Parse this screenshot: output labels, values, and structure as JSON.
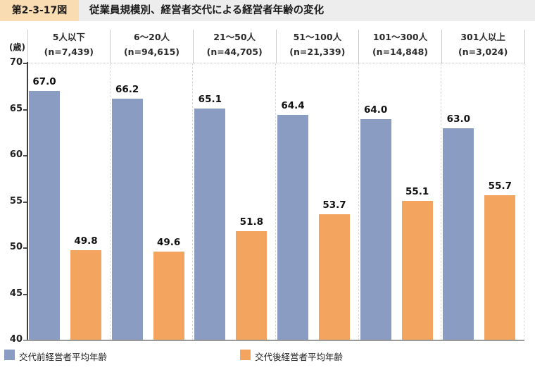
{
  "figure_header": {
    "label": "第2-3-17図",
    "title": "従業員規模別、経営者交代による経営者年齢の変化"
  },
  "chart_data": {
    "type": "bar",
    "title": "従業員規模別、経営者交代による経営者年齢の変化",
    "unit_label": "(歳)",
    "ylim": [
      40,
      70
    ],
    "yticks": [
      40,
      45,
      50,
      55,
      60,
      65,
      70
    ],
    "grid": false,
    "legend_position": "bottom",
    "categories": [
      {
        "label": "5人以下",
        "n": "(n=7,439)"
      },
      {
        "label": "6〜20人",
        "n": "(n=94,615)"
      },
      {
        "label": "21〜50人",
        "n": "(n=44,705)"
      },
      {
        "label": "51〜100人",
        "n": "(n=21,339)"
      },
      {
        "label": "101〜300人",
        "n": "(n=14,848)"
      },
      {
        "label": "301人以上",
        "n": "(n=3,024)"
      }
    ],
    "series": [
      {
        "name": "交代前経営者平均年齢",
        "color": "#8b9cc3",
        "values": [
          67.0,
          66.2,
          65.1,
          64.4,
          64.0,
          63.0
        ]
      },
      {
        "name": "交代後経営者平均年齢",
        "color": "#f3a55f",
        "values": [
          49.8,
          49.6,
          51.8,
          53.7,
          55.1,
          55.7
        ]
      }
    ]
  },
  "colors": {
    "title_bar_bg": "#ededed",
    "figure_label_bg": "#fadcb2",
    "axis_line": "#3f3f3f",
    "baseline": "#9a9a9a"
  }
}
